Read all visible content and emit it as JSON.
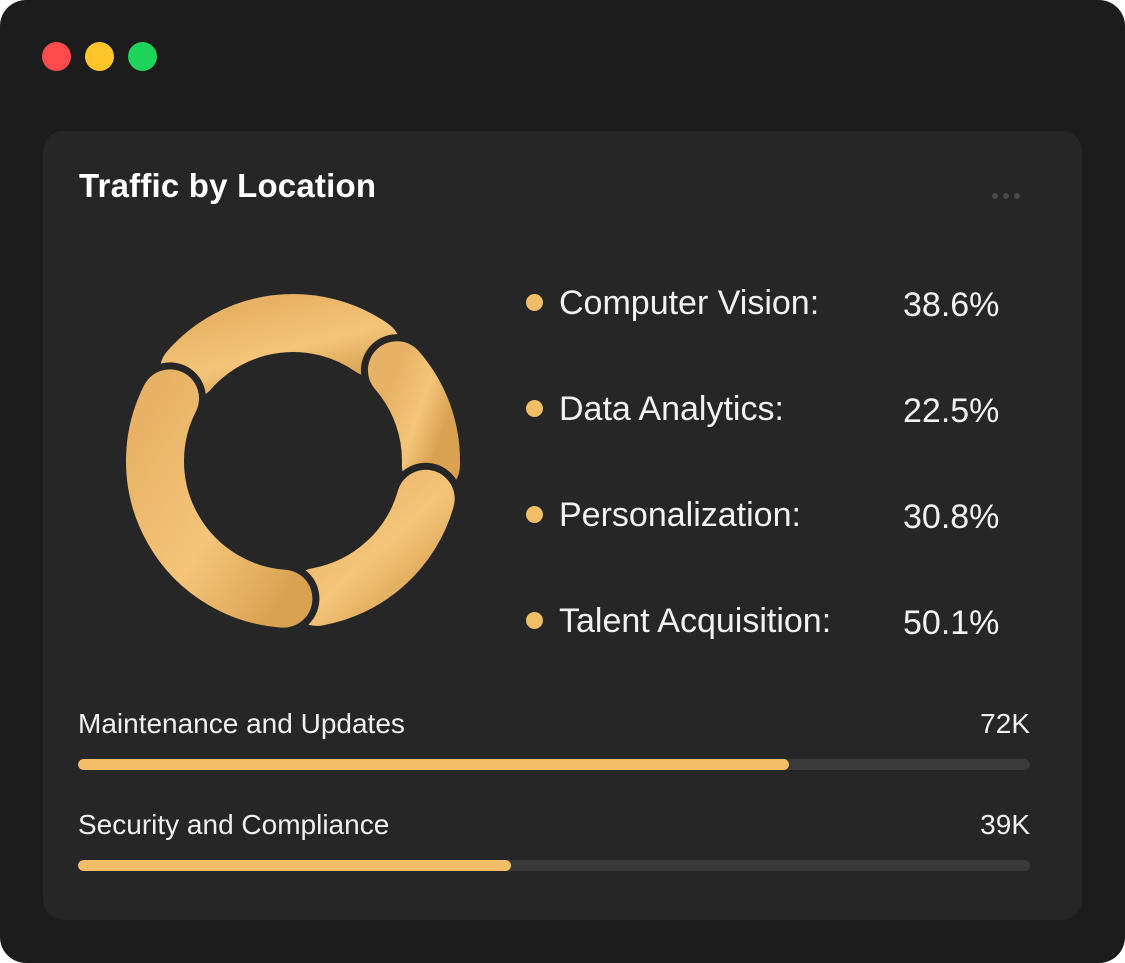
{
  "window": {
    "controls": [
      {
        "name": "close",
        "color": "#ff4b4b"
      },
      {
        "name": "minimize",
        "color": "#ffc52a"
      },
      {
        "name": "maximize",
        "color": "#1fd25a"
      }
    ]
  },
  "card": {
    "title": "Traffic by Location",
    "more_icon": "more-horizontal-icon"
  },
  "colors": {
    "accent": "#f1bd66",
    "accent_dark": "#d9a251",
    "track": "#3a3a3a",
    "card_bg": "#262626"
  },
  "legend": [
    {
      "label": "Computer Vision:",
      "value": "38.6%"
    },
    {
      "label": "Data Analytics:",
      "value": "22.5%"
    },
    {
      "label": "Personalization:",
      "value": "30.8%"
    },
    {
      "label": "Talent Acquisition:",
      "value": "50.1%"
    }
  ],
  "chart_data": {
    "type": "pie",
    "labels": [
      "Computer Vision",
      "Data Analytics",
      "Personalization",
      "Talent Acquisition"
    ],
    "values": [
      38.6,
      22.5,
      30.8,
      50.1
    ]
  },
  "metrics": [
    {
      "label": "Maintenance and Updates",
      "value": "72K",
      "progress": 0.747
    },
    {
      "label": "Security and Compliance",
      "value": "39K",
      "progress": 0.455
    }
  ]
}
